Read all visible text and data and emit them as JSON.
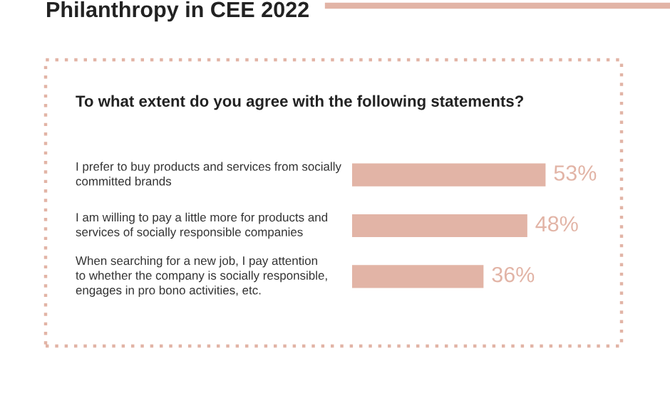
{
  "chart_data": {
    "type": "bar",
    "orientation": "horizontal",
    "title": "Philanthropy in CEE 2022",
    "subtitle": "To what extent do you agree with the following statements?",
    "categories": [
      "I prefer to buy products and services from socially\ncommitted brands",
      "I am willing to pay a little more for products and\nservices of socially responsible companies",
      "When searching for a new job, I pay attention\nto whether the company is socially responsible,\nengages in pro bono activities, etc."
    ],
    "values": [
      53,
      48,
      36
    ],
    "value_labels": [
      "53%",
      "48%",
      "36%"
    ],
    "color": "#e2b4a6"
  }
}
